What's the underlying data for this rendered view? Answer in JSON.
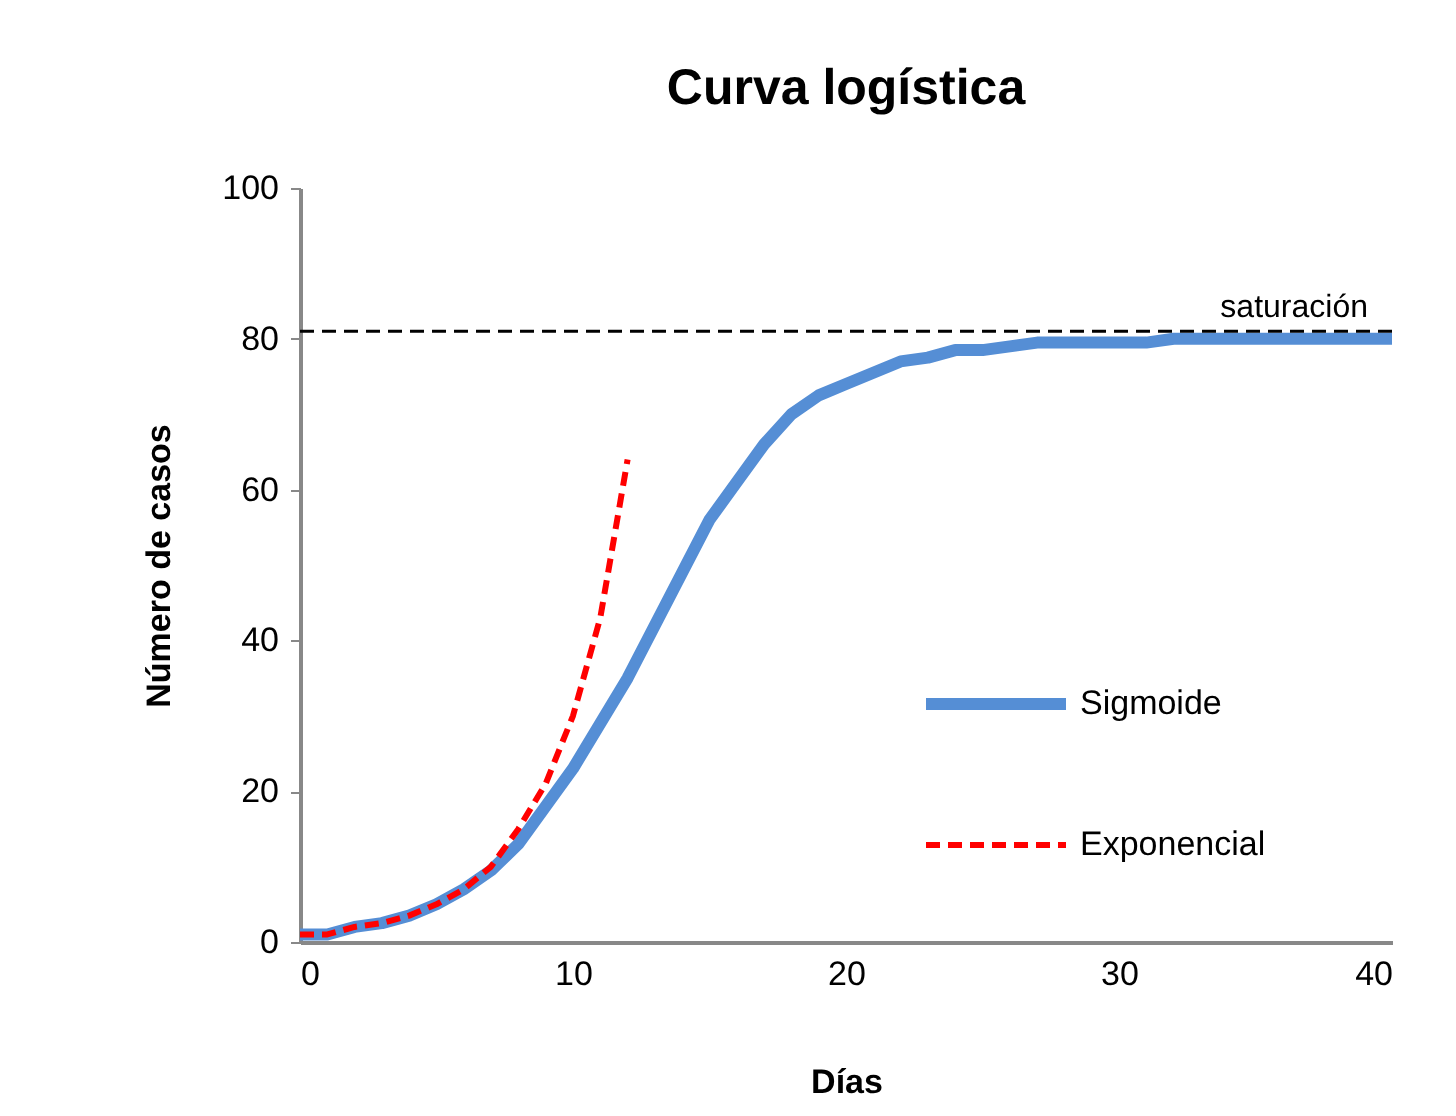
{
  "chart_data": {
    "type": "line",
    "title": "Curva logística",
    "xlabel": "Días",
    "ylabel": "Número de  casos",
    "series": [
      {
        "name": "Sigmoide",
        "color": "#558ed5",
        "line_style": "solid",
        "x": [
          0,
          1,
          2,
          3,
          4,
          5,
          6,
          7,
          8,
          9,
          10,
          11,
          12,
          13,
          14,
          15,
          16,
          17,
          18,
          19,
          20,
          21,
          22,
          23,
          24,
          25,
          26,
          27,
          28,
          29,
          30,
          31,
          32,
          33,
          34,
          35,
          36,
          37,
          38,
          39,
          40
        ],
        "values": [
          1,
          1,
          2,
          2.5,
          3.5,
          5,
          7,
          9.5,
          13,
          18,
          23,
          29,
          35,
          42,
          49,
          56,
          61,
          66,
          70,
          72.5,
          74,
          75.5,
          77,
          77.5,
          78.5,
          78.5,
          79,
          79.5,
          79.5,
          79.5,
          79.5,
          79.5,
          80,
          80,
          80,
          80,
          80,
          80,
          80,
          80,
          80
        ]
      },
      {
        "name": "Exponencial",
        "color": "#ff0000",
        "line_style": "dashed",
        "x": [
          0,
          1,
          2,
          3,
          4,
          5,
          6,
          7,
          8,
          9,
          10,
          11,
          12
        ],
        "values": [
          1,
          1,
          2,
          2.5,
          3.5,
          5,
          7,
          10,
          15,
          21,
          30,
          43,
          64
        ]
      }
    ],
    "xlim": [
      0,
      40
    ],
    "ylim": [
      0,
      100
    ],
    "xticks": [
      0,
      10,
      20,
      30,
      40
    ],
    "yticks": [
      0,
      20,
      40,
      60,
      80,
      100
    ],
    "ref_lines": [
      {
        "axis": "y",
        "value": 81,
        "label": "saturación",
        "color": "#000000",
        "line_style": "dashed"
      }
    ],
    "legend": "right",
    "grid": false
  }
}
